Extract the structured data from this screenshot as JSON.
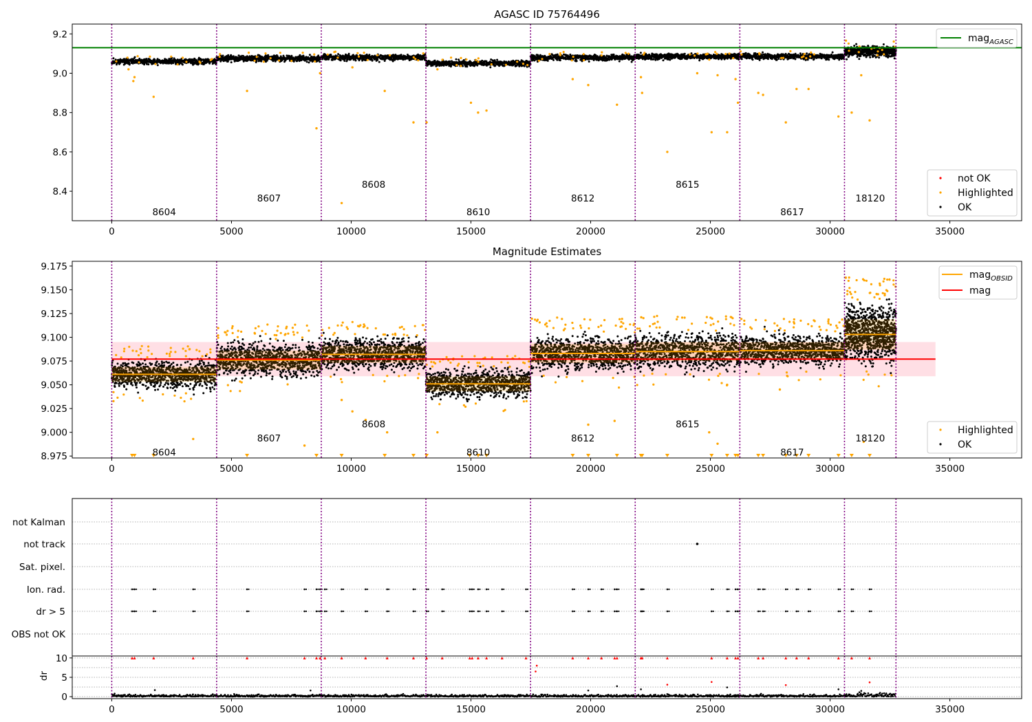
{
  "figure": {
    "colors": {
      "vline": "#800080",
      "agasc_line": "#008000",
      "mag_line": "#ff0000",
      "obsid_line": "#ffa500",
      "highlighted": "#ffa500",
      "not_ok": "#ff0000",
      "ok": "#000000",
      "band_fill": "#ffc0cb"
    },
    "obsid_boundaries": [
      0,
      4380,
      8750,
      13120,
      17490,
      21860,
      26230,
      30600,
      32750
    ]
  },
  "chart_data": [
    {
      "id": "agasc",
      "type": "scatter",
      "title": "AGASC ID 75764496",
      "xlim": [
        -1650,
        38000
      ],
      "ylim": [
        8.25,
        9.25
      ],
      "x_ticks": [
        0,
        5000,
        10000,
        15000,
        20000,
        25000,
        30000,
        35000
      ],
      "y_ticks": [
        8.4,
        8.6,
        8.8,
        9.0,
        9.2
      ],
      "y_tick_labels": [
        "8.4",
        "8.6",
        "8.8",
        "9.0",
        "9.2"
      ],
      "grid": false,
      "reference_lines": [
        {
          "name": "mag_AGASC",
          "y": 9.13,
          "color": "#008000"
        }
      ],
      "obsids": [
        {
          "label": "8604",
          "x": 2190,
          "y": 8.295,
          "ok_level": 9.06,
          "spread": 0.012
        },
        {
          "label": "8607",
          "x": 6565,
          "y": 8.365,
          "ok_level": 9.075,
          "spread": 0.012
        },
        {
          "label": "8608",
          "x": 10935,
          "y": 8.435,
          "ok_level": 9.08,
          "spread": 0.012
        },
        {
          "label": "8610",
          "x": 15305,
          "y": 8.295,
          "ok_level": 9.05,
          "spread": 0.012
        },
        {
          "label": "8612",
          "x": 19675,
          "y": 8.365,
          "ok_level": 9.08,
          "spread": 0.012
        },
        {
          "label": "8615",
          "x": 24045,
          "y": 8.435,
          "ok_level": 9.085,
          "spread": 0.012
        },
        {
          "label": "8617",
          "x": 28415,
          "y": 8.295,
          "ok_level": 9.085,
          "spread": 0.012
        },
        {
          "label": "18120",
          "x": 31675,
          "y": 8.365,
          "ok_level": 9.11,
          "spread": 0.022
        }
      ],
      "highlighted_outliers": [
        [
          700,
          9.02
        ],
        [
          900,
          8.96
        ],
        [
          950,
          8.98
        ],
        [
          1750,
          8.88
        ],
        [
          5650,
          8.91
        ],
        [
          8550,
          8.72
        ],
        [
          8700,
          9.0
        ],
        [
          9600,
          8.34
        ],
        [
          10050,
          9.03
        ],
        [
          11400,
          8.91
        ],
        [
          12600,
          8.75
        ],
        [
          13150,
          8.75
        ],
        [
          13600,
          9.02
        ],
        [
          15000,
          8.85
        ],
        [
          15300,
          8.8
        ],
        [
          15650,
          8.81
        ],
        [
          19250,
          8.97
        ],
        [
          19900,
          8.94
        ],
        [
          21100,
          8.84
        ],
        [
          22100,
          8.98
        ],
        [
          22150,
          8.9
        ],
        [
          23200,
          8.6
        ],
        [
          24450,
          9.0
        ],
        [
          25050,
          8.7
        ],
        [
          25300,
          8.99
        ],
        [
          25700,
          8.7
        ],
        [
          26050,
          8.97
        ],
        [
          26150,
          8.85
        ],
        [
          27000,
          8.9
        ],
        [
          27200,
          8.89
        ],
        [
          28150,
          8.75
        ],
        [
          28600,
          8.92
        ],
        [
          29100,
          8.92
        ],
        [
          30350,
          8.78
        ],
        [
          30900,
          8.8
        ],
        [
          31300,
          8.99
        ],
        [
          31650,
          8.76
        ]
      ],
      "legend": {
        "placement": "lower-right",
        "entries": [
          {
            "label": "not OK",
            "color": "#ff0000"
          },
          {
            "label": "Highlighted",
            "color": "#ffa500"
          },
          {
            "label": "OK",
            "color": "#000000"
          }
        ]
      },
      "legend_upper": {
        "placement": "upper-right",
        "entries": [
          {
            "label": "mag",
            "sub": "AGASC",
            "color": "#008000"
          }
        ]
      }
    },
    {
      "id": "estimates",
      "type": "scatter",
      "title": "Magnitude Estimates",
      "xlim": [
        -1650,
        38000
      ],
      "ylim": [
        8.973,
        9.18
      ],
      "x_ticks": [
        0,
        5000,
        10000,
        15000,
        20000,
        25000,
        30000,
        35000
      ],
      "y_ticks": [
        8.975,
        9.0,
        9.025,
        9.05,
        9.075,
        9.1,
        9.125,
        9.15,
        9.175
      ],
      "y_tick_labels": [
        "8.975",
        "9.000",
        "9.025",
        "9.050",
        "9.075",
        "9.100",
        "9.125",
        "9.150",
        "9.175"
      ],
      "grid": false,
      "mag": 9.077,
      "mag_band": [
        9.059,
        9.095
      ],
      "mag_band_xmax": 34400,
      "obsids": [
        {
          "label": "8604",
          "x": 2190,
          "y": 8.979,
          "mag_obsid": 9.061,
          "std": 0.008
        },
        {
          "label": "8607",
          "x": 6565,
          "y": 8.994,
          "mag_obsid": 9.076,
          "std": 0.01
        },
        {
          "label": "8608",
          "x": 10935,
          "y": 9.009,
          "mag_obsid": 9.082,
          "std": 0.009
        },
        {
          "label": "8610",
          "x": 15305,
          "y": 8.979,
          "mag_obsid": 9.051,
          "std": 0.008
        },
        {
          "label": "8612",
          "x": 19675,
          "y": 8.994,
          "mag_obsid": 9.083,
          "std": 0.01
        },
        {
          "label": "8615",
          "x": 24045,
          "y": 9.009,
          "mag_obsid": 9.085,
          "std": 0.01
        },
        {
          "label": "8617",
          "x": 28415,
          "y": 8.979,
          "mag_obsid": 9.086,
          "std": 0.009
        },
        {
          "label": "18120",
          "x": 31675,
          "y": 8.994,
          "mag_obsid": 9.103,
          "std": 0.016
        }
      ],
      "clipped_low_x": [
        850,
        950,
        1750,
        5650,
        8550,
        9600,
        11400,
        12600,
        13150,
        14950,
        15300,
        15650,
        19250,
        19900,
        21100,
        22100,
        22150,
        23200,
        25050,
        25700,
        26050,
        26150,
        27000,
        27200,
        28150,
        28600,
        29100,
        30350,
        30900,
        31650
      ],
      "highlighted_outliers": [
        [
          3400,
          8.993
        ],
        [
          8050,
          8.986
        ],
        [
          9600,
          9.034
        ],
        [
          10050,
          9.022
        ],
        [
          10600,
          9.013
        ],
        [
          11500,
          9.0
        ],
        [
          13600,
          9.0
        ],
        [
          19900,
          9.008
        ],
        [
          21000,
          9.012
        ],
        [
          24950,
          9.0
        ],
        [
          25300,
          8.988
        ],
        [
          25700,
          9.05
        ],
        [
          27900,
          9.045
        ],
        [
          31400,
          8.99
        ]
      ],
      "legend": {
        "placement": "lower-right",
        "entries": [
          {
            "label": "Highlighted",
            "color": "#ffa500"
          },
          {
            "label": "OK",
            "color": "#000000"
          }
        ]
      },
      "legend_upper": {
        "placement": "upper-right",
        "entries": [
          {
            "label": "mag",
            "sub": "OBSID",
            "color": "#ffa500"
          },
          {
            "label": "mag",
            "sub": "",
            "color": "#ff0000"
          }
        ]
      }
    },
    {
      "id": "flags",
      "type": "scatter",
      "xlim": [
        -1650,
        38000
      ],
      "x_ticks": [
        0,
        5000,
        10000,
        15000,
        20000,
        25000,
        30000,
        35000
      ],
      "category_labels": [
        "not Kalman",
        "not track",
        "Sat. pixel.",
        "Ion. rad.",
        "dr > 5",
        "OBS not OK"
      ],
      "grid": "horizontal dotted",
      "flag_events_x": [
        850,
        950,
        1750,
        3400,
        5650,
        8050,
        8550,
        8700,
        8900,
        9600,
        10600,
        11500,
        12600,
        13150,
        13800,
        14950,
        15050,
        15300,
        15650,
        16300,
        17300,
        19250,
        19900,
        20450,
        21000,
        21100,
        22100,
        22150,
        23200,
        25050,
        25700,
        26050,
        26150,
        27000,
        27200,
        28150,
        28600,
        29100,
        30350,
        30900,
        31650
      ],
      "not_track_points": [
        [
          24450,
          1
        ]
      ]
    },
    {
      "id": "dr",
      "type": "scatter",
      "ylabel": "dr",
      "xlim": [
        -1650,
        38000
      ],
      "ylim": [
        -0.5,
        10.5
      ],
      "x_ticks": [
        0,
        5000,
        10000,
        15000,
        20000,
        25000,
        30000,
        35000
      ],
      "x_tick_labels": [
        "0",
        "5000",
        "10000",
        "15000",
        "20000",
        "25000",
        "30000",
        "35000"
      ],
      "y_ticks": [
        0,
        5,
        10
      ],
      "y_tick_labels": [
        "0",
        "5",
        "10"
      ],
      "grid": "horizontal dotted",
      "dr_clipped_x": [
        850,
        950,
        1750,
        3400,
        5650,
        8050,
        8550,
        8700,
        8900,
        9600,
        10600,
        11500,
        12600,
        13150,
        13800,
        14950,
        15050,
        15300,
        15650,
        16300,
        17300,
        19250,
        19900,
        20450,
        21000,
        21100,
        22100,
        22150,
        23200,
        25050,
        25700,
        26050,
        26150,
        27000,
        27200,
        28150,
        28600,
        29100,
        30350,
        30900,
        31650
      ],
      "dr_red_points": [
        [
          17700,
          6.5
        ],
        [
          17750,
          8.0
        ],
        [
          23200,
          3.1
        ],
        [
          25050,
          3.8
        ],
        [
          28150,
          3.0
        ],
        [
          31650,
          3.7
        ]
      ],
      "dr_black_points": [
        [
          1800,
          1.7
        ],
        [
          8300,
          1.6
        ],
        [
          19900,
          1.6
        ],
        [
          21100,
          2.7
        ],
        [
          22100,
          1.9
        ],
        [
          25700,
          2.4
        ],
        [
          30350,
          1.9
        ],
        [
          31300,
          1.5
        ]
      ]
    }
  ]
}
